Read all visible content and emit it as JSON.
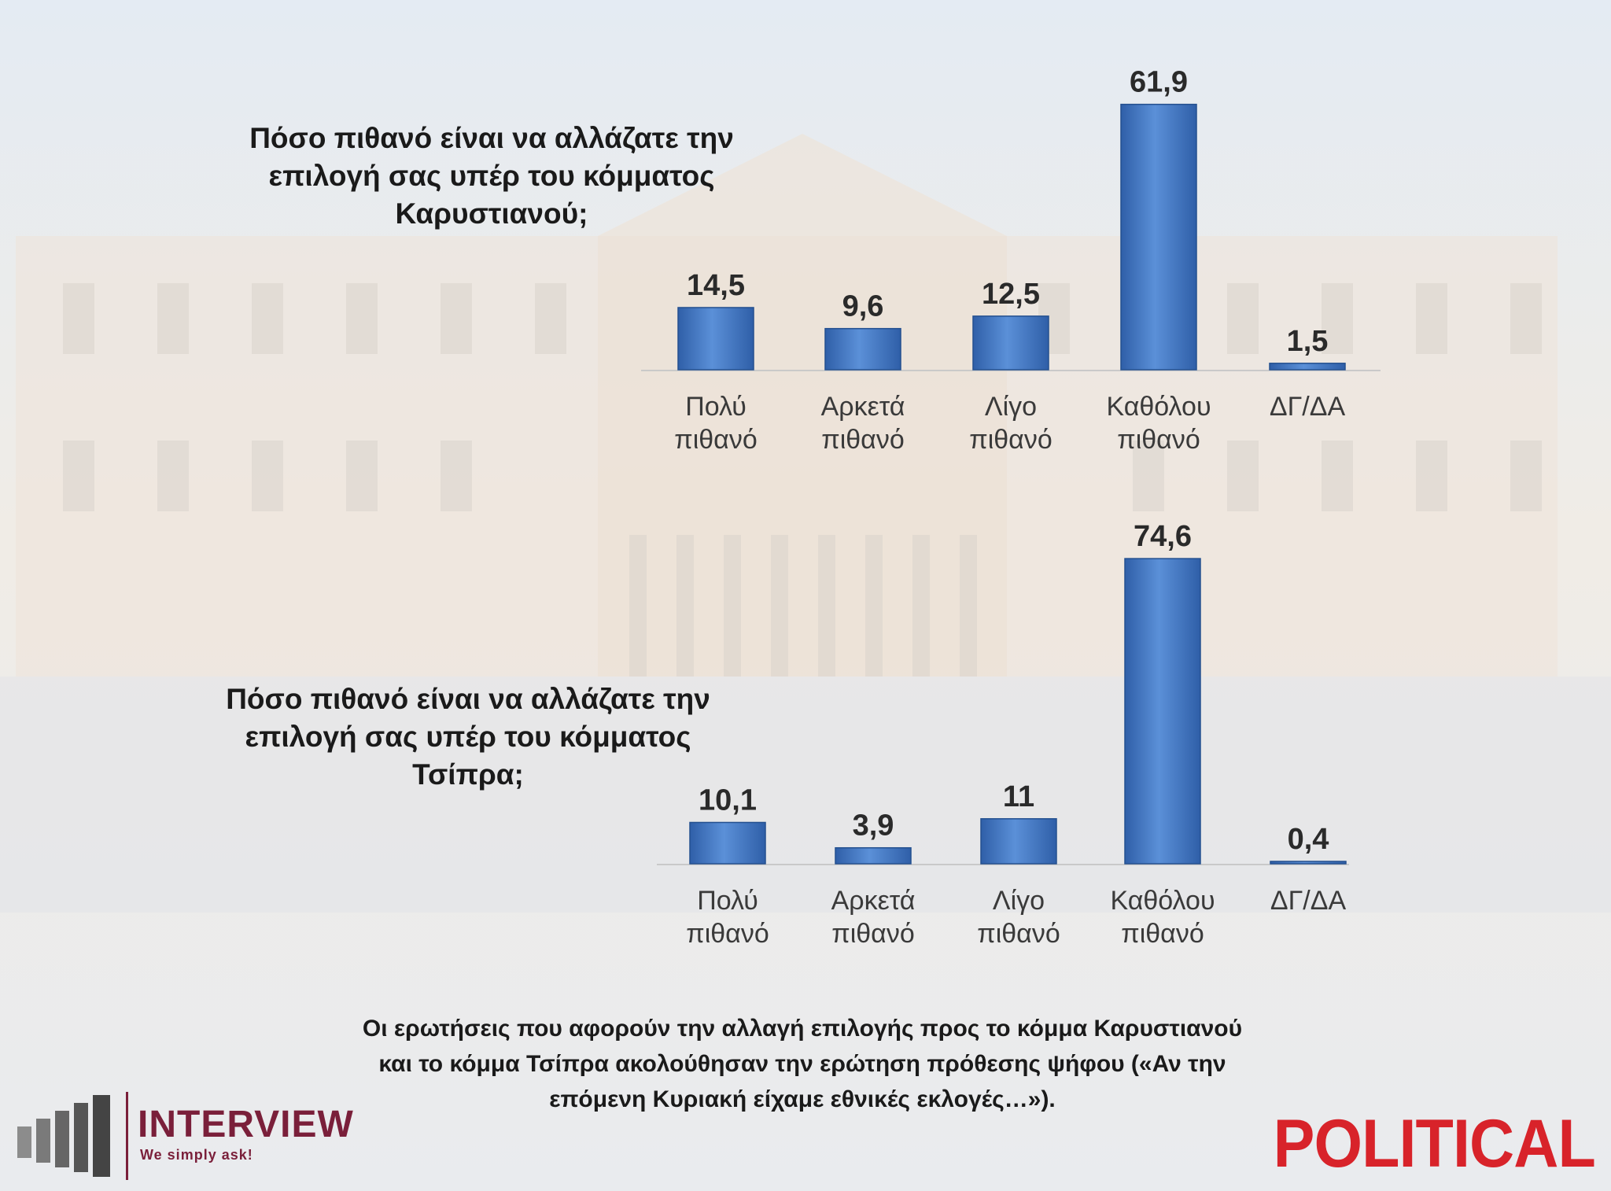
{
  "chart_data": [
    {
      "type": "bar",
      "title": "Πόσο πιθανό είναι να αλλάζατε την\nεπιλογή σας υπέρ του κόμματος\nΚαρυστιανού;",
      "categories": [
        "Πολύ\nπιθανό",
        "Αρκετά\nπιθανό",
        "Λίγο\nπιθανό",
        "Καθόλου\nπιθανό",
        "ΔΓ/ΔΑ"
      ],
      "values": [
        14.5,
        9.6,
        12.5,
        61.9,
        1.5
      ],
      "value_labels": [
        "14,5",
        "9,6",
        "12,5",
        "61,9",
        "1,5"
      ],
      "bar_color": "#4a7fc9"
    },
    {
      "type": "bar",
      "title": "Πόσο πιθανό είναι να αλλάζατε την\nεπιλογή σας υπέρ του κόμματος\nΤσίπρα;",
      "categories": [
        "Πολύ\nπιθανό",
        "Αρκετά\nπιθανό",
        "Λίγο\nπιθανό",
        "Καθόλου\nπιθανό",
        "ΔΓ/ΔΑ"
      ],
      "values": [
        10.1,
        3.9,
        11,
        74.6,
        0.4
      ],
      "value_labels": [
        "10,1",
        "3,9",
        "11",
        "74,6",
        "0,4"
      ],
      "bar_color": "#4a7fc9"
    }
  ],
  "footnote": "Οι ερωτήσεις που αφορούν την αλλαγή επιλογής προς το κόμμα Καρυστιανού\nκαι το κόμμα Τσίπρα ακολούθησαν την ερώτηση πρόθεσης ψήφου («Αν την\nεπόμενη Κυριακή είχαμε εθνικές εκλογές…»).",
  "branding": {
    "interview_name": "INTERVIEW",
    "interview_tagline": "We simply ask!",
    "political": "POLITICAL",
    "interview_color": "#7a1f3a",
    "political_color": "#d8232a"
  }
}
